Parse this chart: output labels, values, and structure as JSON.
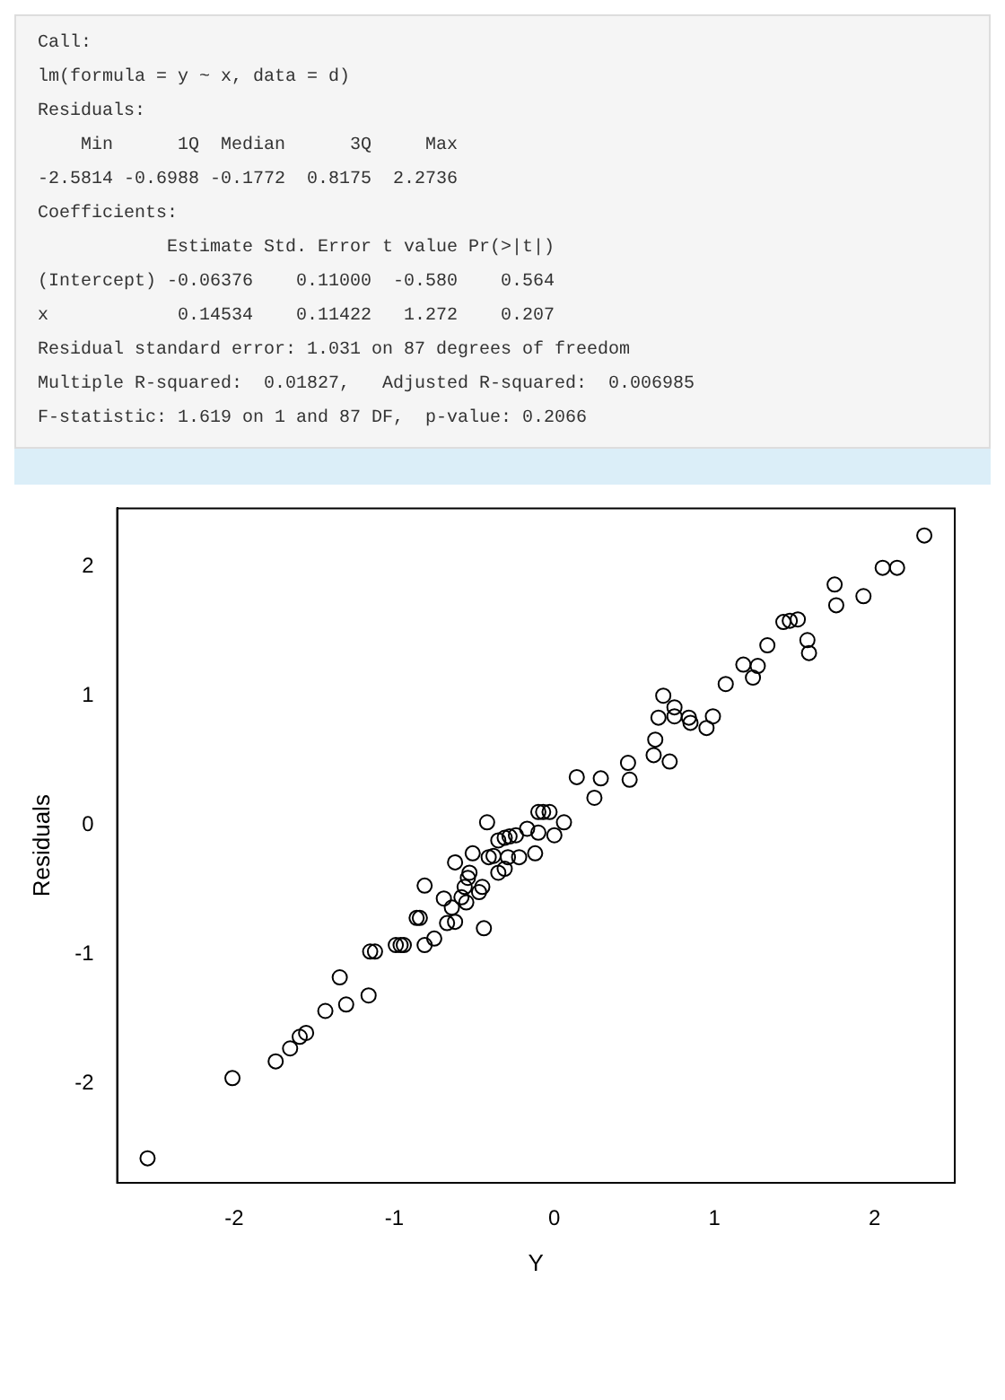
{
  "chart_data": {
    "type": "scatter",
    "xlabel": "Y",
    "ylabel": "Residuals",
    "annotations": [
      "Call:",
      "lm(formula = y ~ x, data = d)",
      "Residuals:",
      "    Min      1Q  Median      3Q     Max ",
      "-2.5814 -0.6988 -0.1772  0.8175  2.2736 ",
      "Coefficients:",
      "            Estimate Std. Error t value Pr(>|t|)",
      "(Intercept) -0.06376    0.11000  -0.580    0.564",
      "x            0.14534    0.11422   1.272    0.207",
      "Residual standard error: 1.031 on 87 degrees of freedom",
      "Multiple R-squared:  0.01827,\tAdjusted R-squared:  0.006985 ",
      "F-statistic: 1.619 on 1 and 87 DF,  p-value: 0.2066"
    ],
    "x": [
      -2.54,
      -2.01,
      -1.74,
      -1.65,
      -1.59,
      -1.55,
      -1.43,
      -1.3,
      -1.34,
      -1.16,
      -1.15,
      -1.12,
      -0.99,
      -0.96,
      -0.94,
      -0.86,
      -0.84,
      -0.81,
      -0.81,
      -0.75,
      -0.69,
      -0.67,
      -0.62,
      -0.64,
      -0.62,
      -0.58,
      -0.56,
      -0.54,
      -0.53,
      -0.55,
      -0.51,
      -0.47,
      -0.45,
      -0.44,
      -0.42,
      -0.41,
      -0.38,
      -0.35,
      -0.35,
      -0.31,
      -0.28,
      -0.24,
      -0.29,
      -0.22,
      -0.17,
      -0.12,
      -0.1,
      -0.31,
      -0.1,
      -0.07,
      -0.03,
      0.0,
      0.06,
      0.14,
      0.25,
      0.29,
      0.46,
      0.47,
      0.62,
      0.63,
      0.65,
      0.68,
      0.72,
      0.75,
      0.75,
      0.84,
      0.85,
      0.95,
      0.99,
      1.07,
      1.18,
      1.24,
      1.27,
      1.33,
      1.43,
      1.47,
      1.52,
      1.58,
      1.59,
      1.75,
      1.76,
      1.93,
      2.05,
      2.14,
      2.31
    ],
    "series": [
      {
        "color": "#000000",
        "values": [
          -2.58,
          -1.96,
          -1.83,
          -1.73,
          -1.64,
          -1.61,
          -1.44,
          -1.39,
          -1.18,
          -1.32,
          -0.98,
          -0.98,
          -0.93,
          -0.93,
          -0.93,
          -0.72,
          -0.72,
          -0.47,
          -0.93,
          -0.88,
          -0.57,
          -0.76,
          -0.75,
          -0.64,
          -0.29,
          -0.56,
          -0.48,
          -0.41,
          -0.37,
          -0.6,
          -0.22,
          -0.52,
          -0.48,
          -0.8,
          0.02,
          -0.25,
          -0.24,
          -0.37,
          -0.12,
          -0.1,
          -0.09,
          -0.08,
          -0.25,
          -0.25,
          -0.03,
          -0.22,
          0.1,
          -0.34,
          -0.06,
          0.1,
          0.1,
          -0.08,
          0.02,
          0.37,
          0.21,
          0.36,
          0.48,
          0.35,
          0.54,
          0.66,
          0.83,
          1.0,
          0.49,
          0.91,
          0.84,
          0.83,
          0.79,
          0.75,
          0.84,
          1.09,
          1.24,
          1.14,
          1.23,
          1.39,
          1.57,
          1.58,
          1.59,
          1.43,
          1.33,
          1.86,
          1.7,
          1.77,
          1.99,
          1.99,
          2.24
        ]
      }
    ],
    "xlim": [
      -2.73,
      2.5
    ],
    "ylim": [
      -2.77,
      2.45
    ],
    "xticks": [
      -2,
      -1,
      0,
      1,
      2
    ],
    "yticks": [
      -2,
      -1,
      0,
      1,
      2
    ],
    "grid": false,
    "legend": false,
    "marker": "circle"
  }
}
